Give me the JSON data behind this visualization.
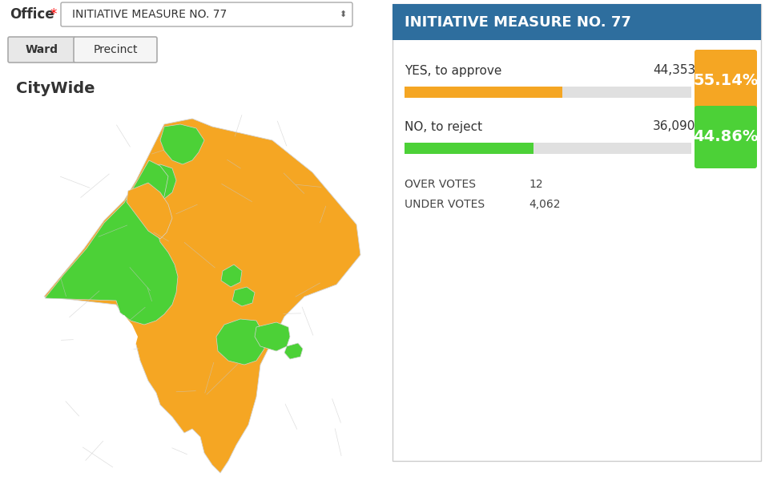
{
  "title": "INITIATIVE MEASURE NO. 77",
  "header_bg": "#2e6e9e",
  "header_text_color": "#ffffff",
  "panel_bg": "#ffffff",
  "panel_border": "#cccccc",
  "yes_label": "YES, to approve",
  "yes_votes": "44,353",
  "yes_pct": "55.14%",
  "yes_pct_val": 55.14,
  "yes_color": "#f5a623",
  "no_label": "NO, to reject",
  "no_votes": "36,090",
  "no_pct": "44.86%",
  "no_pct_val": 44.86,
  "no_color": "#4cd137",
  "bar_bg": "#e0e0e0",
  "over_votes_label": "OVER VOTES",
  "over_votes_val": "12",
  "under_votes_label": "UNDER VOTES",
  "under_votes_val": "4,062",
  "office_label": "Office",
  "office_value": "INITIATIVE MEASURE NO. 77",
  "ward_label": "Ward",
  "precinct_label": "Precinct",
  "citywide_label": "CityWide",
  "map_orange": "#f5a623",
  "map_green": "#4cd137",
  "fig_bg": "#ffffff",
  "text_color": "#333333",
  "label_color": "#444444"
}
